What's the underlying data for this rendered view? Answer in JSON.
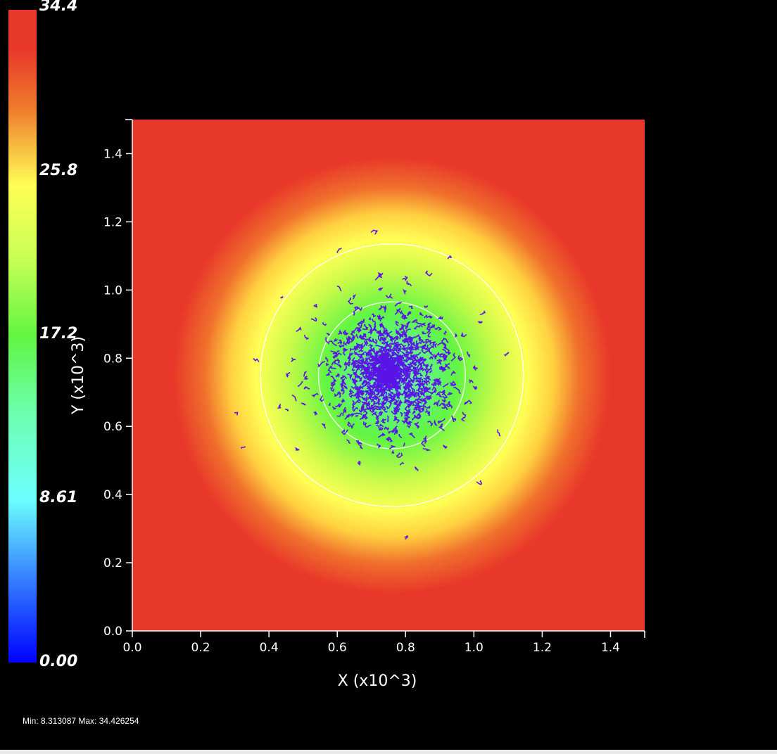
{
  "chart_data": {
    "type": "heatmap",
    "title": "",
    "xlabel": "X (x10^3)",
    "ylabel": "Y (x10^3)",
    "xlim": [
      0.0,
      1.5
    ],
    "ylim": [
      0.0,
      1.5
    ],
    "x_ticks": [
      "0.0",
      "0.2",
      "0.4",
      "0.6",
      "0.8",
      "1.0",
      "1.2",
      "1.4"
    ],
    "y_ticks": [
      "0.0",
      "0.2",
      "0.4",
      "0.6",
      "0.8",
      "1.0",
      "1.2",
      "1.4"
    ],
    "field": {
      "center": [
        0.76,
        0.75
      ],
      "value_at_center": 8.31,
      "value_far": 34.43
    },
    "contours": [
      {
        "center": [
          0.76,
          0.75
        ],
        "radius": 0.215
      },
      {
        "center": [
          0.76,
          0.75
        ],
        "radius": 0.385
      }
    ],
    "particles": {
      "color": "#5a14e6",
      "center": [
        0.75,
        0.75
      ],
      "spread": 0.12,
      "outliers": [
        [
          0.3,
          0.64
        ],
        [
          0.33,
          0.54
        ],
        [
          0.37,
          0.79
        ],
        [
          0.44,
          0.98
        ],
        [
          0.6,
          1.11
        ],
        [
          0.7,
          1.17
        ],
        [
          0.93,
          1.1
        ],
        [
          1.02,
          0.44
        ],
        [
          1.07,
          0.59
        ],
        [
          1.09,
          0.81
        ],
        [
          0.8,
          0.27
        ],
        [
          0.48,
          0.53
        ],
        [
          0.45,
          0.65
        ]
      ]
    },
    "colorbar": {
      "labels": [
        "34.4",
        "25.8",
        "17.2",
        "8.61",
        "0.00"
      ],
      "min": 0.0,
      "max": 34.4,
      "colors": {
        "low": "#0000ff",
        "mid_low": "#6dffff",
        "mid": "#62f542",
        "mid_high": "#ffff55",
        "high": "#e8382a"
      }
    },
    "stats": "Min: 8.313087 Max: 34.426254"
  }
}
